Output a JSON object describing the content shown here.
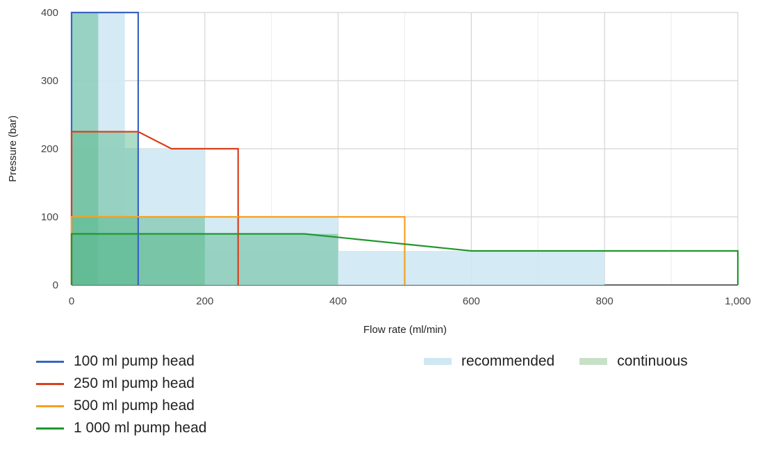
{
  "chart_data": {
    "type": "line",
    "xlabel": "Flow rate (ml/min)",
    "ylabel": "Pressure (bar)",
    "xlim": [
      0,
      1000
    ],
    "ylim": [
      0,
      400
    ],
    "x_ticks": [
      0,
      200,
      400,
      600,
      800,
      1000
    ],
    "x_tick_labels": [
      "0",
      "200",
      "400",
      "600",
      "800",
      "1,000"
    ],
    "y_ticks": [
      0,
      100,
      200,
      300,
      400
    ],
    "y_tick_labels": [
      "0",
      "100",
      "200",
      "300",
      "400"
    ],
    "grid": true,
    "series": [
      {
        "name": "100 ml pump head",
        "color": "#3b63c4",
        "points": [
          [
            0,
            0
          ],
          [
            0,
            400
          ],
          [
            100,
            400
          ],
          [
            100,
            0
          ]
        ]
      },
      {
        "name": "250 ml pump head",
        "color": "#d9401c",
        "points": [
          [
            0,
            0
          ],
          [
            0,
            225
          ],
          [
            100,
            225
          ],
          [
            150,
            200
          ],
          [
            250,
            200
          ],
          [
            250,
            0
          ]
        ]
      },
      {
        "name": "500 ml pump head",
        "color": "#f5a020",
        "points": [
          [
            0,
            0
          ],
          [
            0,
            100
          ],
          [
            500,
            100
          ],
          [
            500,
            0
          ]
        ]
      },
      {
        "name": "1 000 ml pump head",
        "color": "#22962e",
        "points": [
          [
            0,
            0
          ],
          [
            0,
            75
          ],
          [
            350,
            75
          ],
          [
            600,
            50
          ],
          [
            1000,
            50
          ],
          [
            1000,
            0
          ]
        ]
      }
    ],
    "areas": [
      {
        "name": "recommended",
        "color": "#cfe8f3",
        "regions": [
          {
            "x": [
              0,
              80
            ],
            "y": [
              0,
              400
            ]
          },
          {
            "x": [
              0,
              200
            ],
            "y": [
              0,
              200
            ]
          },
          {
            "x": [
              0,
              400
            ],
            "y": [
              0,
              100
            ]
          },
          {
            "x": [
              0,
              800
            ],
            "y": [
              0,
              50
            ]
          }
        ]
      },
      {
        "name": "continuous",
        "color": "#5bb98f",
        "regions": [
          {
            "x": [
              0,
              40
            ],
            "y": [
              0,
              400
            ]
          },
          {
            "x": [
              0,
              100
            ],
            "y": [
              0,
              225
            ]
          },
          {
            "x": [
              0,
              200
            ],
            "y": [
              0,
              100
            ]
          },
          {
            "x": [
              0,
              400
            ],
            "y": [
              0,
              75
            ]
          }
        ]
      }
    ],
    "legend": {
      "lines": [
        "100 ml pump head",
        "250 ml pump head",
        "500 ml pump head",
        "1 000 ml pump head"
      ],
      "areas": [
        "recommended",
        "continuous"
      ],
      "area_colors": [
        "#cfe8f3",
        "#c8e0c8"
      ]
    }
  }
}
